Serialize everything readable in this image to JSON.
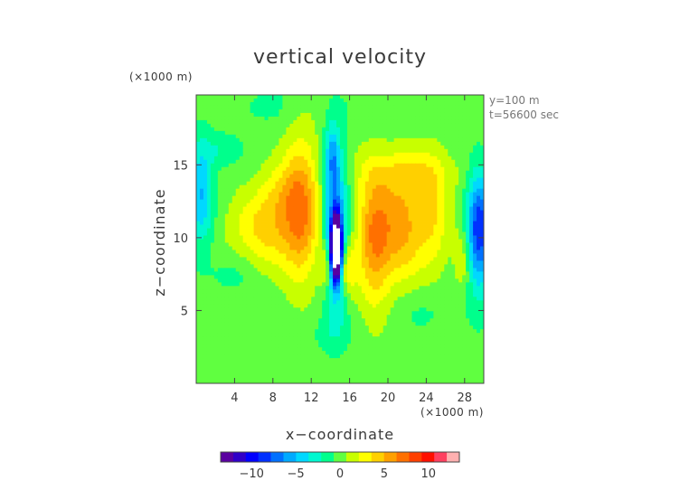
{
  "chart_data": {
    "type": "heatmap",
    "title": "vertical velocity",
    "xlabel": "x−coordinate",
    "ylabel": "z−coordinate",
    "x_unit": "(×1000 m)",
    "y_unit": "(×1000 m)",
    "xlim": [
      0,
      30
    ],
    "ylim": [
      0,
      19.8
    ],
    "x_ticks": [
      {
        "value": 4,
        "label": "4"
      },
      {
        "value": 8,
        "label": "8"
      },
      {
        "value": 12,
        "label": "12"
      },
      {
        "value": 16,
        "label": "16"
      },
      {
        "value": 20,
        "label": "20"
      },
      {
        "value": 24,
        "label": "24"
      },
      {
        "value": 28,
        "label": "28"
      }
    ],
    "y_ticks": [
      {
        "value": 5,
        "label": "5"
      },
      {
        "value": 10,
        "label": "10"
      },
      {
        "value": 15,
        "label": "15"
      }
    ],
    "annotations": [
      "y=100 m",
      "t=56600 sec"
    ],
    "colorbar": {
      "min": -13.5,
      "max": 13.5,
      "ticks": [
        {
          "value": -10,
          "label": "−10"
        },
        {
          "value": -5,
          "label": "−5"
        },
        {
          "value": 0,
          "label": "0"
        },
        {
          "value": 5,
          "label": "5"
        },
        {
          "value": 10,
          "label": "10"
        }
      ],
      "colors": [
        "#5a00a0",
        "#3000c8",
        "#0000ff",
        "#0030ff",
        "#0070ff",
        "#00aaff",
        "#00d8ff",
        "#00f8d0",
        "#00ff8c",
        "#60ff40",
        "#c8ff00",
        "#ffff00",
        "#ffd000",
        "#ffa000",
        "#ff7000",
        "#ff4000",
        "#ff1000",
        "#ff4060",
        "#ffb0b0"
      ]
    },
    "features": [
      {
        "x": 14.6,
        "z": 9.3,
        "sx": 0.35,
        "sz": 1.4,
        "w": -24
      },
      {
        "x": 14.5,
        "z": 10.5,
        "sx": 0.9,
        "sz": 4.0,
        "w": -7
      },
      {
        "x": 14.2,
        "z": 15.5,
        "sx": 0.5,
        "sz": 1.5,
        "w": -4
      },
      {
        "x": 13.5,
        "z": 8.0,
        "sx": 0.5,
        "sz": 1.2,
        "w": 4
      },
      {
        "x": 11.0,
        "z": 12.0,
        "sx": 1.3,
        "sz": 3.6,
        "w": 5.5
      },
      {
        "x": 7.5,
        "z": 10.6,
        "sx": 2.5,
        "sz": 1.8,
        "w": 4.2
      },
      {
        "x": 9.0,
        "z": 13.2,
        "sx": 1.6,
        "sz": 1.4,
        "w": 2.5
      },
      {
        "x": 15.8,
        "z": 7.8,
        "sx": 0.6,
        "sz": 1.2,
        "w": 4
      },
      {
        "x": 18.6,
        "z": 10.0,
        "sx": 1.3,
        "sz": 3.2,
        "w": 6.5
      },
      {
        "x": 21.5,
        "z": 10.8,
        "sx": 1.4,
        "sz": 2.6,
        "w": 5
      },
      {
        "x": 24.5,
        "z": 11.5,
        "sx": 1.3,
        "sz": 2.8,
        "w": 3.5
      },
      {
        "x": 22.0,
        "z": 14.5,
        "sx": 3.5,
        "sz": 1.1,
        "w": 2.2
      },
      {
        "x": 29.5,
        "z": 10.5,
        "sx": 0.9,
        "sz": 2.8,
        "w": -9
      },
      {
        "x": 0.5,
        "z": 13.0,
        "sx": 0.9,
        "sz": 2.5,
        "w": -5
      },
      {
        "x": 2.5,
        "z": 16.0,
        "sx": 1.5,
        "sz": 0.8,
        "w": -2
      },
      {
        "x": 27.8,
        "z": 8.5,
        "sx": 0.6,
        "sz": 1.5,
        "w": 2.5
      },
      {
        "x": 3.5,
        "z": 7.5,
        "sx": 2.0,
        "sz": 1.0,
        "w": -1.2
      },
      {
        "x": 13.0,
        "z": 3.5,
        "sx": 2.5,
        "sz": 1.0,
        "w": -1.0
      },
      {
        "x": 24.0,
        "z": 5.0,
        "sx": 3.0,
        "sz": 1.2,
        "w": -1.0
      },
      {
        "x": 7.0,
        "z": 19.0,
        "sx": 3.0,
        "sz": 1.0,
        "w": -1.0
      },
      {
        "x": 20.0,
        "z": 18.5,
        "sx": 3.0,
        "sz": 0.8,
        "w": -0.8
      }
    ]
  }
}
